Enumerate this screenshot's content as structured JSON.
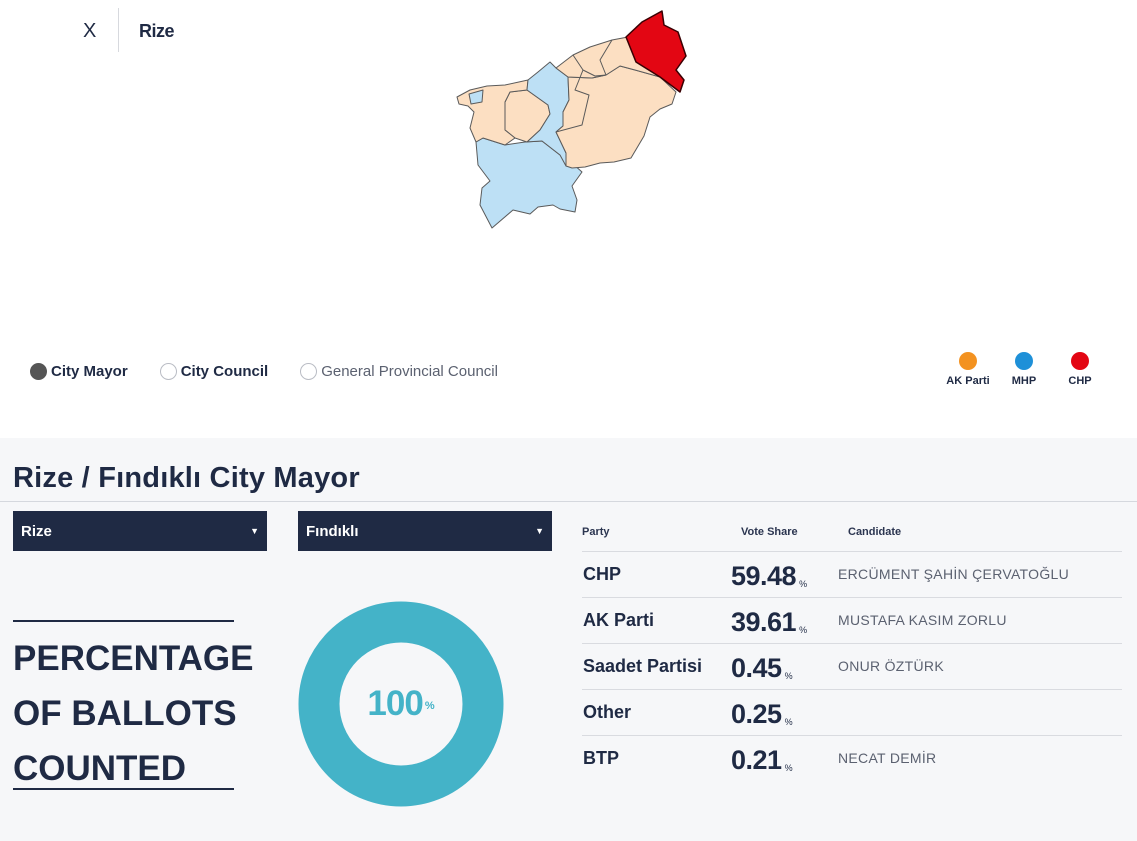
{
  "header": {
    "close_label": "X",
    "region": "Rize"
  },
  "map": {
    "colors": {
      "ak_parti": "#fcdfc2",
      "mhp": "#bde0f5",
      "chp": "#e30613",
      "border": "#5a5a5a"
    }
  },
  "election_types": [
    {
      "label": "City Mayor",
      "selected": true
    },
    {
      "label": "City Council",
      "selected": false
    },
    {
      "label": "General Provincial Council",
      "selected": false
    }
  ],
  "legend": [
    {
      "label": "AK Parti",
      "color": "#f39220"
    },
    {
      "label": "MHP",
      "color": "#1e90d8"
    },
    {
      "label": "CHP",
      "color": "#e30613"
    }
  ],
  "panel": {
    "title": "Rize / Fındıklı City Mayor",
    "province_select": "Rize",
    "district_select": "Fındıklı",
    "ballots": {
      "line1": "PERCENTAGE",
      "line2": "OF BALLOTS",
      "line3": "COUNTED",
      "value": "100",
      "unit": "%",
      "fraction": 1.0,
      "color": "#44b3c8"
    }
  },
  "results": {
    "headers": {
      "party": "Party",
      "share": "Vote Share",
      "candidate": "Candidate"
    },
    "rows": [
      {
        "party": "CHP",
        "share": "59.48",
        "unit": "%",
        "candidate": "ERCÜMENT ŞAHİN ÇERVATOĞLU"
      },
      {
        "party": "AK Parti",
        "share": "39.61",
        "unit": "%",
        "candidate": "MUSTAFA KASIM ZORLU"
      },
      {
        "party": "Saadet Partisi",
        "share": "0.45",
        "unit": "%",
        "candidate": "ONUR ÖZTÜRK"
      },
      {
        "party": "Other",
        "share": "0.25",
        "unit": "%",
        "candidate": ""
      },
      {
        "party": "BTP",
        "share": "0.21",
        "unit": "%",
        "candidate": "NECAT DEMİR"
      }
    ]
  }
}
